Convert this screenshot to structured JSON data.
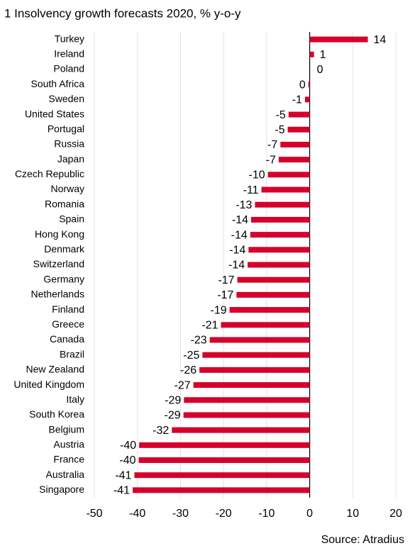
{
  "chart_data": {
    "type": "barh",
    "title": "1 Insolvency growth forecasts 2020, % y-o-y",
    "source": "Source: Atradius",
    "categories": [
      "Turkey",
      "Ireland",
      "Poland",
      "South Africa",
      "Sweden",
      "United States",
      "Portugal",
      "Russia",
      "Japan",
      "Czech Republic",
      "Norway",
      "Romania",
      "Spain",
      "Hong Kong",
      "Denmark",
      "Switzerland",
      "Germany",
      "Netherlands",
      "Finland",
      "Greece",
      "Canada",
      "Brazil",
      "New Zealand",
      "United Kingdom",
      "Italy",
      "South Korea",
      "Belgium",
      "Austria",
      "France",
      "Australia",
      "Singapore"
    ],
    "values": [
      13.5,
      1.0,
      0,
      -0.3,
      -1.1,
      -4.9,
      -5.1,
      -6.8,
      -7.2,
      -9.7,
      -11.2,
      -12.7,
      -13.6,
      -13.8,
      -14.2,
      -14.4,
      -16.8,
      -17.0,
      -18.6,
      -20.6,
      -23.2,
      -24.9,
      -25.6,
      -27.0,
      -29.2,
      -29.3,
      -32.0,
      -39.6,
      -39.7,
      -40.7,
      -41.1
    ],
    "value_labels": [
      "14",
      "1",
      "0",
      "0",
      "-1",
      "-5",
      "-5",
      "-7",
      "-7",
      "-10",
      "-11",
      "-13",
      "-14",
      "-14",
      "-14",
      "-14",
      "-17",
      "-17",
      "-19",
      "-21",
      "-23",
      "-25",
      "-26",
      "-27",
      "-29",
      "-29",
      "-32",
      "-40",
      "-40",
      "-41",
      "-41"
    ],
    "color": "#d5002b",
    "xlim": [
      -50,
      20
    ],
    "xticks": [
      -50,
      -40,
      -30,
      -20,
      -10,
      0,
      10,
      20
    ],
    "grid": true
  }
}
